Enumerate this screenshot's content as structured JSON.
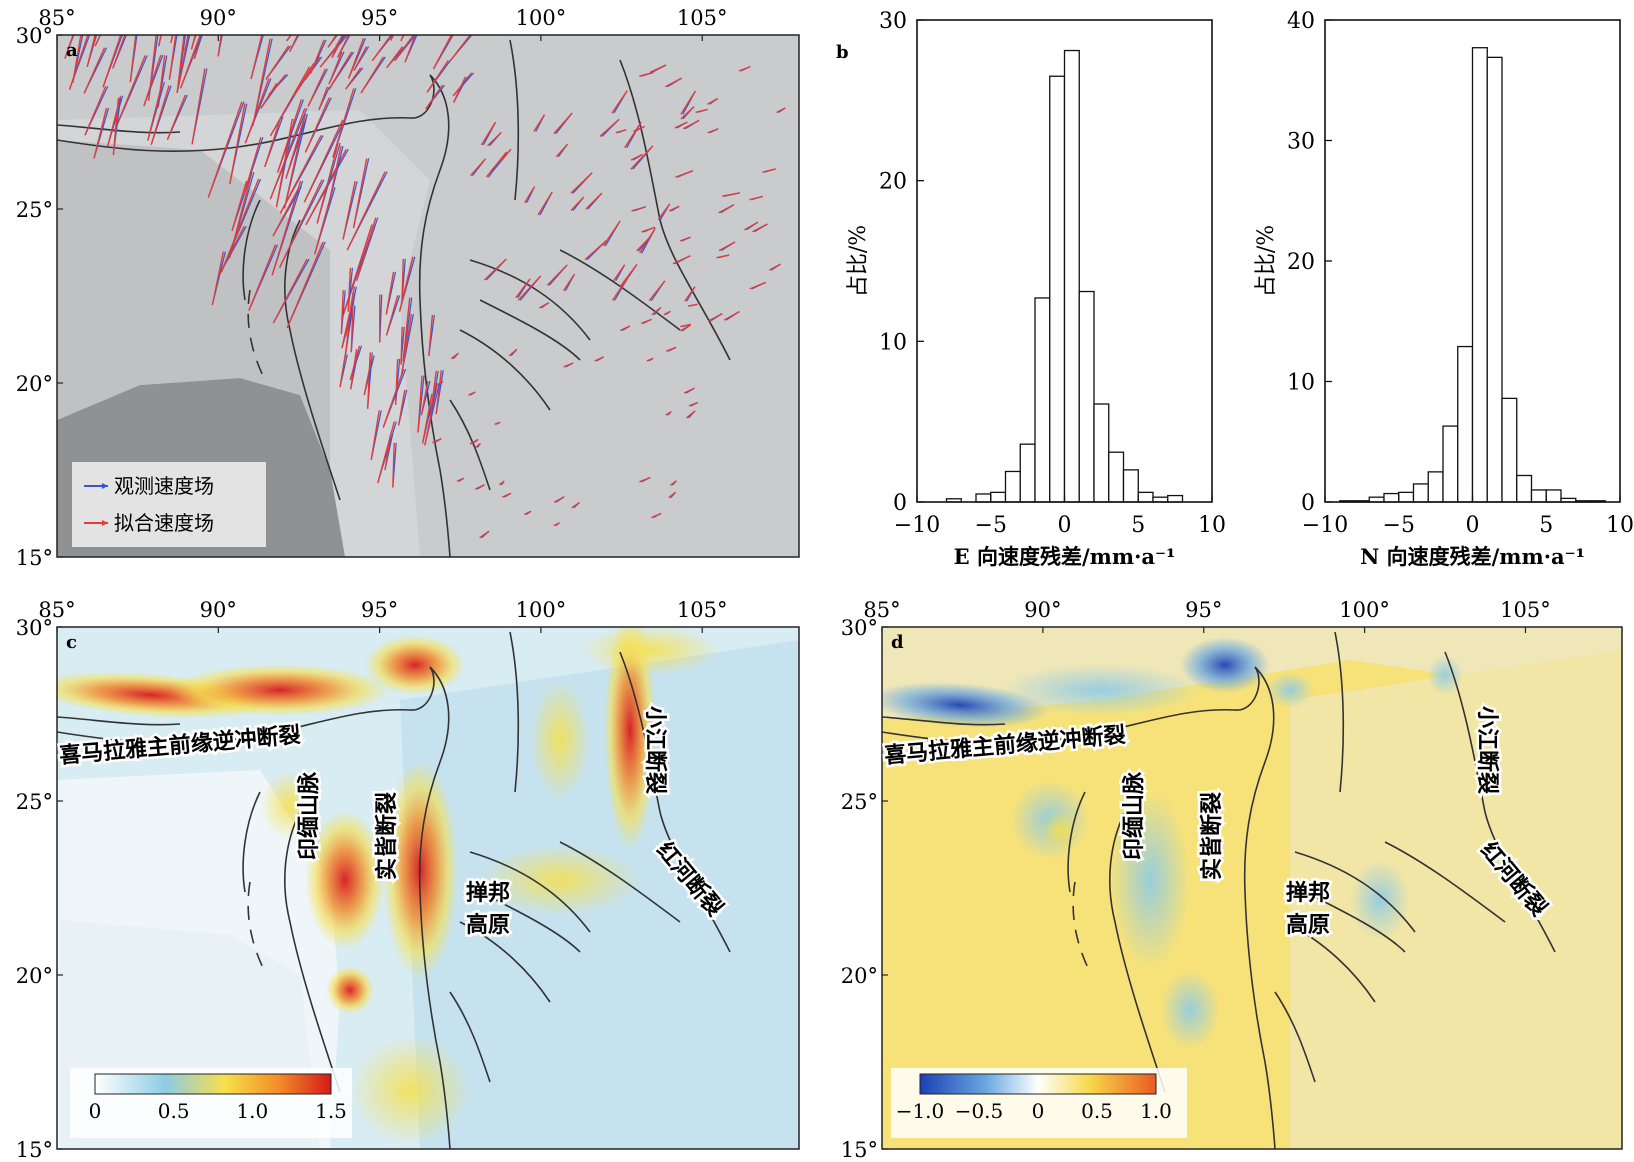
{
  "colors": {
    "relief": "#c9cbcc",
    "sea": "#8f9193",
    "observed": "#3a57c8",
    "fitted": "#e23b3b",
    "fault": "#333333",
    "bar_edge": "#111111"
  },
  "maps": {
    "lon_ticks": [
      "85°",
      "90°",
      "95°",
      "100°",
      "105°"
    ],
    "lat_ticks": [
      "30°",
      "25°",
      "20°",
      "15°"
    ],
    "panel_a": {
      "letter": "a",
      "legend": {
        "observed": "观测速度场",
        "fitted": "拟合速度场"
      }
    },
    "panel_c": {
      "letter": "c",
      "labels": {
        "mft": "喜马拉雅主前缘逆冲断裂",
        "indo_burma": "印缅山脉",
        "sagaing": "实皆断裂",
        "shan_1": "掸邦",
        "shan_2": "高原",
        "xiaojiang": "小江断裂",
        "red_river": "红河断裂"
      },
      "colorbar": {
        "ticks": [
          "0",
          "0.5",
          "1.0",
          "1.5"
        ],
        "colormap": [
          "#ffffff",
          "#8ecbe5",
          "#f7e04a",
          "#f28c28",
          "#d7191c"
        ]
      }
    },
    "panel_d": {
      "letter": "d",
      "labels": {
        "mft": "喜马拉雅主前缘逆冲断裂",
        "indo_burma": "印缅山脉",
        "sagaing": "实皆断裂",
        "shan_1": "掸邦",
        "shan_2": "高原",
        "xiaojiang": "小江断裂",
        "red_river": "红河断裂"
      },
      "colorbar": {
        "ticks": [
          "−1.0",
          "−0.5",
          "0",
          "0.5",
          "1.0"
        ],
        "colormap": [
          "#1d3fb5",
          "#6aa8e0",
          "#ffffff",
          "#f7d84a",
          "#ea5a22"
        ]
      }
    }
  },
  "chart_data": [
    {
      "id": "panel_b_E",
      "panel_letter": "b",
      "type": "bar",
      "xlabel": "E 向速度残差/mm·a⁻¹",
      "ylabel": "占比/%",
      "xlim": [
        -10,
        10
      ],
      "ylim": [
        0,
        30
      ],
      "x_ticks": [
        -10,
        -5,
        0,
        5,
        10
      ],
      "y_ticks": [
        0,
        10,
        20,
        30
      ],
      "bins": [
        [
          -8,
          -7
        ],
        [
          -7,
          -6
        ],
        [
          -6,
          -5
        ],
        [
          -5,
          -4
        ],
        [
          -4,
          -3
        ],
        [
          -3,
          -2
        ],
        [
          -2,
          -1
        ],
        [
          -1,
          0
        ],
        [
          0,
          1
        ],
        [
          1,
          2
        ],
        [
          2,
          3
        ],
        [
          3,
          4
        ],
        [
          4,
          5
        ],
        [
          5,
          6
        ],
        [
          6,
          7
        ],
        [
          7,
          8
        ]
      ],
      "values": [
        0.2,
        0,
        0.5,
        0.6,
        1.9,
        3.6,
        12.7,
        26.5,
        28.1,
        13.1,
        6.1,
        3.1,
        2.0,
        0.6,
        0.3,
        0.4
      ]
    },
    {
      "id": "panel_b_N",
      "panel_letter": "",
      "type": "bar",
      "xlabel": "N 向速度残差/mm·a⁻¹",
      "ylabel": "占比/%",
      "xlim": [
        -10,
        10
      ],
      "ylim": [
        0,
        40
      ],
      "x_ticks": [
        -10,
        -5,
        0,
        5,
        10
      ],
      "y_ticks": [
        0,
        10,
        20,
        30,
        40
      ],
      "bins": [
        [
          -9,
          -8
        ],
        [
          -8,
          -7
        ],
        [
          -7,
          -6
        ],
        [
          -6,
          -5
        ],
        [
          -5,
          -4
        ],
        [
          -4,
          -3
        ],
        [
          -3,
          -2
        ],
        [
          -2,
          -1
        ],
        [
          -1,
          0
        ],
        [
          0,
          1
        ],
        [
          1,
          2
        ],
        [
          2,
          3
        ],
        [
          3,
          4
        ],
        [
          4,
          5
        ],
        [
          5,
          6
        ],
        [
          6,
          7
        ],
        [
          7,
          8
        ],
        [
          8,
          9
        ]
      ],
      "values": [
        0.1,
        0.1,
        0.4,
        0.7,
        0.8,
        1.5,
        2.5,
        6.3,
        12.9,
        37.7,
        36.9,
        8.6,
        2.2,
        1.0,
        1.0,
        0.3,
        0.1,
        0.1
      ]
    }
  ]
}
